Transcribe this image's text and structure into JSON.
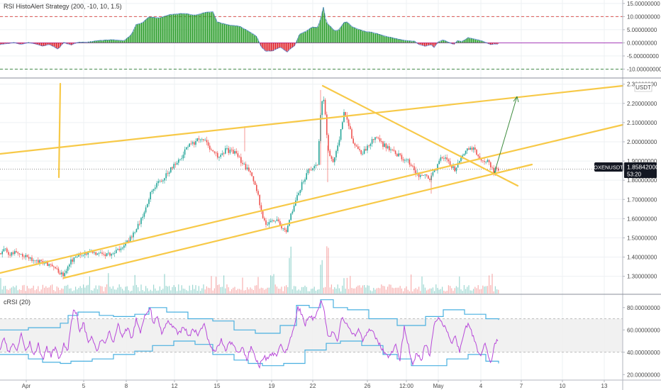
{
  "colors": {
    "up": "#26a69a",
    "down": "#ef5350",
    "hist_up": "#2e9e2e",
    "hist_down": "#e0232a",
    "hist_line": "#2f6ad0",
    "trend": "#f7c948",
    "signal": "#3d8b3d",
    "crsi": "#b84ad9",
    "band": "#4ab0e0",
    "price_tag": "#131722",
    "grid": "#eef0f3",
    "border": "#b2b5be",
    "ref_red": "#d9534f",
    "ref_green": "#2e7d32"
  },
  "panes": {
    "top": {
      "title": "RSI HistoAlert Strategy (200, -10, 10, 1.5)"
    },
    "main": {
      "symbol_tag": "OXENUSDT",
      "price": "1.85842000",
      "countdown": "53:20",
      "currency": "USDT"
    },
    "bottom": {
      "title": "cRSI (20)"
    }
  },
  "chart_data": [
    {
      "type": "bar",
      "title": "RSI HistoAlert Strategy (200, -10, 10, 1.5)",
      "ylim": [
        -11.5,
        15.5
      ],
      "y_ticks": [
        "15.00000000",
        "10.00000000",
        "5.00000000",
        "0.00000000",
        "-5.00000000",
        "-10.00000000"
      ],
      "reference_lines": [
        10,
        -10
      ],
      "histogram_keypoints": [
        [
          0,
          -0.6
        ],
        [
          10,
          -0.3
        ],
        [
          20,
          0.1
        ],
        [
          30,
          -0.6
        ],
        [
          40,
          0.1
        ],
        [
          50,
          -0.4
        ],
        [
          60,
          -1.2
        ],
        [
          70,
          -0.6
        ],
        [
          78,
          -1.8
        ],
        [
          82,
          -2.5
        ],
        [
          86,
          -1.0
        ],
        [
          90,
          0.1
        ],
        [
          100,
          -0.8
        ],
        [
          110,
          0.2
        ],
        [
          125,
          0.3
        ],
        [
          140,
          0.9
        ],
        [
          160,
          1.2
        ],
        [
          175,
          0.8
        ],
        [
          185,
          3.0
        ],
        [
          192,
          7.0
        ],
        [
          200,
          7.5
        ],
        [
          210,
          9.8
        ],
        [
          225,
          9.5
        ],
        [
          240,
          10.8
        ],
        [
          260,
          11.2
        ],
        [
          275,
          10.5
        ],
        [
          290,
          11.6
        ],
        [
          300,
          11.9
        ],
        [
          306,
          8.0
        ],
        [
          312,
          7.5
        ],
        [
          322,
          6.8
        ],
        [
          338,
          6.3
        ],
        [
          350,
          4.5
        ],
        [
          362,
          2.5
        ],
        [
          368,
          -1.5
        ],
        [
          375,
          -3.2
        ],
        [
          385,
          -3.0
        ],
        [
          395,
          -1.6
        ],
        [
          405,
          -3.5
        ],
        [
          410,
          -2.1
        ],
        [
          416,
          -1.0
        ],
        [
          422,
          3.2
        ],
        [
          432,
          4.5
        ],
        [
          440,
          6.0
        ],
        [
          448,
          5.8
        ],
        [
          452,
          9.0
        ],
        [
          456,
          13.6
        ],
        [
          460,
          7.8
        ],
        [
          466,
          6.2
        ],
        [
          472,
          4.5
        ],
        [
          478,
          5.0
        ],
        [
          485,
          7.8
        ],
        [
          490,
          7.9
        ],
        [
          496,
          6.2
        ],
        [
          505,
          5.2
        ],
        [
          515,
          4.3
        ],
        [
          525,
          4.0
        ],
        [
          535,
          3.2
        ],
        [
          545,
          2.4
        ],
        [
          555,
          1.8
        ],
        [
          565,
          1.2
        ],
        [
          575,
          0.8
        ],
        [
          585,
          0.6
        ],
        [
          590,
          -0.6
        ],
        [
          600,
          -1.3
        ],
        [
          608,
          -0.6
        ],
        [
          612,
          -1.8
        ],
        [
          618,
          0.4
        ],
        [
          625,
          1.2
        ],
        [
          632,
          0.2
        ],
        [
          640,
          -0.6
        ],
        [
          645,
          0.8
        ],
        [
          652,
          0.5
        ],
        [
          660,
          2.0
        ],
        [
          666,
          1.6
        ],
        [
          672,
          1.3
        ],
        [
          680,
          0.7
        ],
        [
          686,
          0.0
        ],
        [
          692,
          -0.7
        ],
        [
          698,
          -0.4
        ],
        [
          703,
          -0.6
        ]
      ]
    },
    {
      "type": "line",
      "title": "OXENUSDT",
      "x_ticks": [
        "Apr",
        "5",
        "8",
        "12",
        "15",
        "19",
        "22",
        "26",
        "12:00",
        "May",
        "4",
        "7",
        "10",
        "13"
      ],
      "y_ticks": [
        "2.30000000",
        "2.20000000",
        "2.10000000",
        "2.00000000",
        "1.90000000",
        "1.80000000",
        "1.70000000",
        "1.60000000",
        "1.50000000",
        "1.40000000",
        "1.30000000"
      ],
      "ylim": [
        1.21,
        2.31
      ],
      "last_price": 1.85842,
      "price_keypoints": [
        [
          0,
          1.42
        ],
        [
          8,
          1.44
        ],
        [
          15,
          1.41
        ],
        [
          25,
          1.43
        ],
        [
          35,
          1.4
        ],
        [
          50,
          1.38
        ],
        [
          60,
          1.37
        ],
        [
          70,
          1.36
        ],
        [
          80,
          1.33
        ],
        [
          90,
          1.31
        ],
        [
          100,
          1.38
        ],
        [
          110,
          1.41
        ],
        [
          125,
          1.42
        ],
        [
          140,
          1.42
        ],
        [
          150,
          1.41
        ],
        [
          160,
          1.43
        ],
        [
          170,
          1.44
        ],
        [
          178,
          1.47
        ],
        [
          186,
          1.51
        ],
        [
          193,
          1.56
        ],
        [
          200,
          1.6
        ],
        [
          205,
          1.64
        ],
        [
          212,
          1.74
        ],
        [
          220,
          1.78
        ],
        [
          230,
          1.81
        ],
        [
          240,
          1.86
        ],
        [
          250,
          1.9
        ],
        [
          258,
          1.93
        ],
        [
          265,
          1.98
        ],
        [
          272,
          1.99
        ],
        [
          280,
          2.01
        ],
        [
          288,
          2.02
        ],
        [
          293,
          1.98
        ],
        [
          300,
          1.95
        ],
        [
          310,
          1.92
        ],
        [
          318,
          1.96
        ],
        [
          325,
          1.95
        ],
        [
          333,
          1.94
        ],
        [
          340,
          1.9
        ],
        [
          347,
          1.86
        ],
        [
          354,
          1.84
        ],
        [
          360,
          1.78
        ],
        [
          366,
          1.68
        ],
        [
          372,
          1.59
        ],
        [
          378,
          1.57
        ],
        [
          385,
          1.6
        ],
        [
          392,
          1.58
        ],
        [
          398,
          1.55
        ],
        [
          404,
          1.53
        ],
        [
          409,
          1.6
        ],
        [
          414,
          1.66
        ],
        [
          420,
          1.73
        ],
        [
          428,
          1.8
        ],
        [
          435,
          1.85
        ],
        [
          442,
          1.87
        ],
        [
          448,
          1.88
        ],
        [
          452,
          2.13
        ],
        [
          455,
          2.25
        ],
        [
          458,
          2.18
        ],
        [
          462,
          1.98
        ],
        [
          466,
          1.91
        ],
        [
          470,
          1.9
        ],
        [
          475,
          1.96
        ],
        [
          480,
          2.05
        ],
        [
          484,
          2.14
        ],
        [
          487,
          2.15
        ],
        [
          492,
          2.08
        ],
        [
          498,
          2.0
        ],
        [
          505,
          1.96
        ],
        [
          512,
          1.94
        ],
        [
          518,
          1.98
        ],
        [
          524,
          2.0
        ],
        [
          530,
          2.03
        ],
        [
          538,
          1.99
        ],
        [
          546,
          1.97
        ],
        [
          555,
          1.95
        ],
        [
          565,
          1.92
        ],
        [
          575,
          1.9
        ],
        [
          585,
          1.85
        ],
        [
          593,
          1.82
        ],
        [
          600,
          1.83
        ],
        [
          607,
          1.81
        ],
        [
          612,
          1.85
        ],
        [
          618,
          1.88
        ],
        [
          624,
          1.93
        ],
        [
          630,
          1.9
        ],
        [
          636,
          1.88
        ],
        [
          642,
          1.85
        ],
        [
          648,
          1.9
        ],
        [
          655,
          1.95
        ],
        [
          662,
          1.96
        ],
        [
          668,
          1.97
        ],
        [
          674,
          1.92
        ],
        [
          680,
          1.89
        ],
        [
          686,
          1.91
        ],
        [
          692,
          1.87
        ],
        [
          696,
          1.84
        ],
        [
          700,
          1.86
        ],
        [
          703,
          1.858
        ]
      ]
    },
    {
      "type": "line",
      "title": "cRSI (20)",
      "y_ticks": [
        "80.00000000",
        "60.00000000",
        "40.00000000",
        "20.00000000"
      ],
      "ylim": [
        17,
        90
      ],
      "reference_band": [
        40,
        70
      ],
      "crsi_keypoints": [
        [
          0,
          44
        ],
        [
          6,
          52
        ],
        [
          12,
          40
        ],
        [
          18,
          48
        ],
        [
          24,
          41
        ],
        [
          30,
          56
        ],
        [
          36,
          41
        ],
        [
          42,
          49
        ],
        [
          48,
          36
        ],
        [
          54,
          47
        ],
        [
          60,
          33
        ],
        [
          66,
          44
        ],
        [
          72,
          37
        ],
        [
          78,
          45
        ],
        [
          84,
          33
        ],
        [
          90,
          48
        ],
        [
          95,
          39
        ],
        [
          100,
          64
        ],
        [
          104,
          79
        ],
        [
          108,
          74
        ],
        [
          112,
          58
        ],
        [
          118,
          66
        ],
        [
          124,
          49
        ],
        [
          130,
          54
        ],
        [
          136,
          40
        ],
        [
          142,
          52
        ],
        [
          148,
          46
        ],
        [
          154,
          58
        ],
        [
          160,
          48
        ],
        [
          166,
          66
        ],
        [
          172,
          54
        ],
        [
          180,
          62
        ],
        [
          186,
          52
        ],
        [
          192,
          70
        ],
        [
          198,
          58
        ],
        [
          206,
          76
        ],
        [
          212,
          79
        ],
        [
          216,
          66
        ],
        [
          222,
          70
        ],
        [
          228,
          58
        ],
        [
          236,
          68
        ],
        [
          244,
          62
        ],
        [
          252,
          57
        ],
        [
          260,
          63
        ],
        [
          266,
          53
        ],
        [
          272,
          60
        ],
        [
          280,
          56
        ],
        [
          288,
          64
        ],
        [
          294,
          50
        ],
        [
          300,
          40
        ],
        [
          306,
          44
        ],
        [
          312,
          52
        ],
        [
          318,
          42
        ],
        [
          324,
          50
        ],
        [
          330,
          44
        ],
        [
          336,
          38
        ],
        [
          342,
          44
        ],
        [
          348,
          33
        ],
        [
          354,
          45
        ],
        [
          360,
          35
        ],
        [
          366,
          28
        ],
        [
          372,
          36
        ],
        [
          378,
          33
        ],
        [
          384,
          40
        ],
        [
          390,
          36
        ],
        [
          396,
          46
        ],
        [
          402,
          38
        ],
        [
          408,
          50
        ],
        [
          414,
          60
        ],
        [
          420,
          80
        ],
        [
          424,
          76
        ],
        [
          430,
          64
        ],
        [
          436,
          74
        ],
        [
          442,
          70
        ],
        [
          448,
          77
        ],
        [
          452,
          87
        ],
        [
          456,
          82
        ],
        [
          460,
          62
        ],
        [
          464,
          52
        ],
        [
          470,
          60
        ],
        [
          476,
          48
        ],
        [
          482,
          72
        ],
        [
          488,
          66
        ],
        [
          494,
          60
        ],
        [
          500,
          54
        ],
        [
          506,
          60
        ],
        [
          512,
          50
        ],
        [
          518,
          58
        ],
        [
          524,
          62
        ],
        [
          530,
          52
        ],
        [
          538,
          44
        ],
        [
          546,
          36
        ],
        [
          552,
          40
        ],
        [
          558,
          46
        ],
        [
          564,
          34
        ],
        [
          570,
          62
        ],
        [
          576,
          46
        ],
        [
          582,
          28
        ],
        [
          588,
          40
        ],
        [
          594,
          32
        ],
        [
          600,
          48
        ],
        [
          606,
          36
        ],
        [
          612,
          64
        ],
        [
          618,
          72
        ],
        [
          624,
          66
        ],
        [
          630,
          60
        ],
        [
          636,
          48
        ],
        [
          642,
          54
        ],
        [
          648,
          40
        ],
        [
          654,
          58
        ],
        [
          660,
          66
        ],
        [
          666,
          56
        ],
        [
          672,
          44
        ],
        [
          678,
          36
        ],
        [
          684,
          50
        ],
        [
          688,
          36
        ],
        [
          692,
          28
        ],
        [
          696,
          44
        ],
        [
          700,
          50
        ],
        [
          703,
          52
        ]
      ],
      "upper_band_keypoints": [
        [
          0,
          60
        ],
        [
          40,
          62
        ],
        [
          85,
          66
        ],
        [
          96,
          73
        ],
        [
          110,
          76
        ],
        [
          140,
          73
        ],
        [
          160,
          72
        ],
        [
          190,
          74
        ],
        [
          210,
          80
        ],
        [
          235,
          76
        ],
        [
          265,
          70
        ],
        [
          300,
          68
        ],
        [
          330,
          60
        ],
        [
          360,
          57
        ],
        [
          395,
          64
        ],
        [
          418,
          82
        ],
        [
          436,
          80
        ],
        [
          452,
          87
        ],
        [
          470,
          80
        ],
        [
          490,
          78
        ],
        [
          520,
          70
        ],
        [
          560,
          64
        ],
        [
          600,
          72
        ],
        [
          625,
          78
        ],
        [
          655,
          74
        ],
        [
          685,
          70
        ],
        [
          703,
          69
        ]
      ],
      "lower_band_keypoints": [
        [
          0,
          38
        ],
        [
          40,
          34
        ],
        [
          60,
          31
        ],
        [
          85,
          30
        ],
        [
          100,
          32
        ],
        [
          130,
          34
        ],
        [
          160,
          38
        ],
        [
          190,
          41
        ],
        [
          215,
          46
        ],
        [
          245,
          50
        ],
        [
          275,
          47
        ],
        [
          300,
          38
        ],
        [
          330,
          33
        ],
        [
          350,
          30
        ],
        [
          370,
          28
        ],
        [
          400,
          30
        ],
        [
          430,
          42
        ],
        [
          460,
          48
        ],
        [
          480,
          50
        ],
        [
          510,
          46
        ],
        [
          540,
          38
        ],
        [
          560,
          34
        ],
        [
          580,
          28
        ],
        [
          600,
          28
        ],
        [
          630,
          34
        ],
        [
          660,
          38
        ],
        [
          685,
          32
        ],
        [
          703,
          30
        ]
      ]
    }
  ]
}
